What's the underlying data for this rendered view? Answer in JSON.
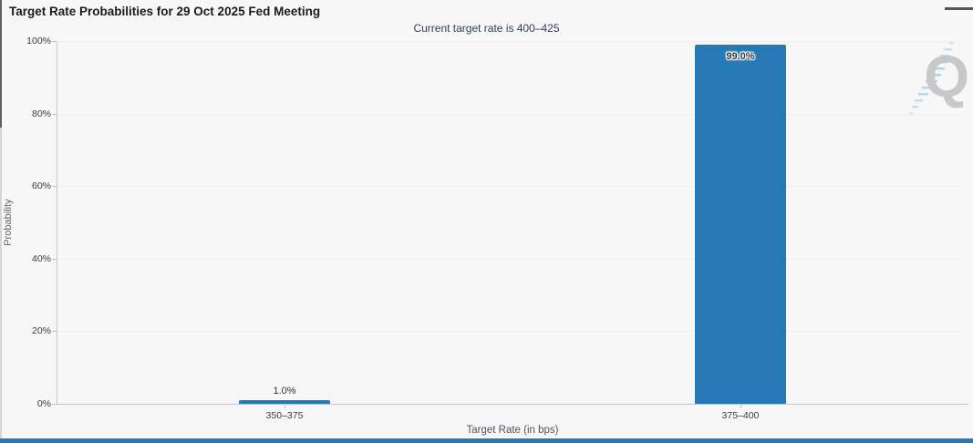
{
  "header": {
    "title": "Target Rate Probabilities for 29 Oct 2025 Fed Meeting",
    "menu_icon": "menu-icon"
  },
  "chart_data": {
    "type": "bar",
    "title": "Target Rate Probabilities for 29 Oct 2025 Fed Meeting",
    "subtitle": "Current target rate is 400–425",
    "categories": [
      "350–375",
      "375–400"
    ],
    "values": [
      1.0,
      99.0
    ],
    "value_labels": [
      "1.0%",
      "99.0%"
    ],
    "xlabel": "Target Rate (in bps)",
    "ylabel": "Probability",
    "ylim": [
      0,
      100
    ],
    "yticks": [
      "0%",
      "20%",
      "40%",
      "60%",
      "80%",
      "100%"
    ],
    "grid": "dotted-horizontal",
    "legend": "none",
    "bar_color": "#2779b5"
  },
  "watermark": {
    "letter": "Q",
    "icon": "quikstrike-logo"
  },
  "colors": {
    "bar": "#2779b5",
    "bottom_accent": "#2779b5",
    "background": "#f7f7f7",
    "subtitle_text": "#2c3e5e",
    "watermark_gray": "#c8c8c8",
    "watermark_blue": "#9ed2e8"
  }
}
